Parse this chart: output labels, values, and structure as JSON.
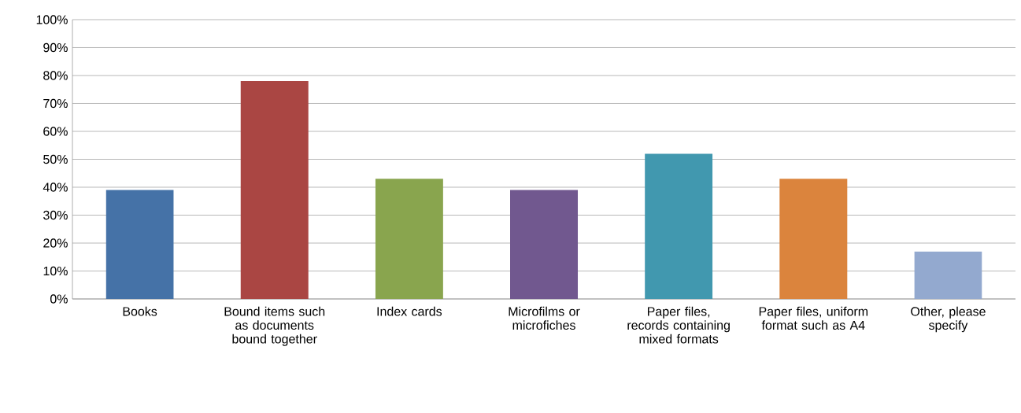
{
  "chart_data": {
    "type": "bar",
    "categories": [
      "Books",
      "Bound items such as documents bound together",
      "Index cards",
      "Microfilms or microfiches",
      "Paper files, records containing mixed formats",
      "Paper files, uniform format such as A4",
      "Other, please specify"
    ],
    "values": [
      39,
      78,
      43,
      39,
      52,
      43,
      17
    ],
    "colors": [
      "#4572a7",
      "#aa4643",
      "#89a54e",
      "#71588f",
      "#4198af",
      "#db843d",
      "#93a9cf"
    ],
    "ylim": [
      0,
      100
    ],
    "yticks": [
      {
        "value": 0,
        "label": "0%"
      },
      {
        "value": 10,
        "label": "10%"
      },
      {
        "value": 20,
        "label": "20%"
      },
      {
        "value": 30,
        "label": "30%"
      },
      {
        "value": 40,
        "label": "40%"
      },
      {
        "value": 50,
        "label": "50%"
      },
      {
        "value": 60,
        "label": "60%"
      },
      {
        "value": 70,
        "label": "70%"
      },
      {
        "value": 80,
        "label": "80%"
      },
      {
        "value": 90,
        "label": "90%"
      },
      {
        "value": 100,
        "label": "100%"
      }
    ],
    "grid": "y"
  }
}
